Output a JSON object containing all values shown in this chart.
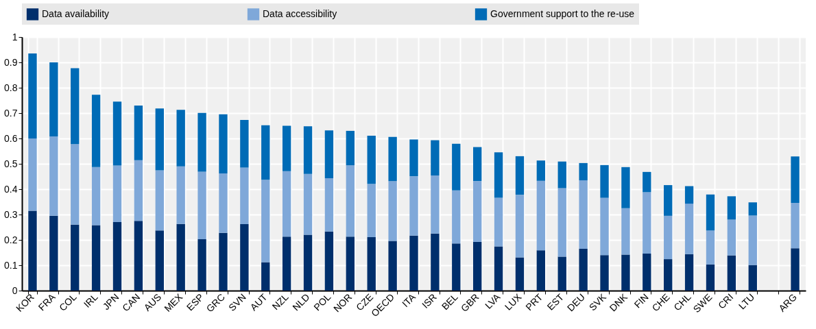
{
  "chart_data": {
    "type": "bar",
    "stacked": true,
    "categories": [
      "KOR",
      "FRA",
      "COL",
      "IRL",
      "JPN",
      "CAN",
      "AUS",
      "MEX",
      "ESP",
      "GRC",
      "SVN",
      "AUT",
      "NZL",
      "NLD",
      "POL",
      "NOR",
      "CZE",
      "OECD",
      "ITA",
      "ISR",
      "BEL",
      "GBR",
      "LVA",
      "LUX",
      "PRT",
      "EST",
      "DEU",
      "SVK",
      "DNK",
      "FIN",
      "CHE",
      "CHL",
      "SWE",
      "CRI",
      "LTU",
      null,
      "ARG"
    ],
    "series": [
      {
        "name": "Data availability",
        "color": "#002f6c",
        "values": [
          0.315,
          0.295,
          0.26,
          0.258,
          0.27,
          0.275,
          0.237,
          0.263,
          0.203,
          0.228,
          0.262,
          0.112,
          0.213,
          0.22,
          0.233,
          0.213,
          0.211,
          0.196,
          0.217,
          0.225,
          0.186,
          0.192,
          0.174,
          0.131,
          0.159,
          0.134,
          0.165,
          0.14,
          0.142,
          0.146,
          0.124,
          0.144,
          0.103,
          0.139,
          0.101,
          null,
          0.167
        ]
      },
      {
        "name": "Data accessibility",
        "color": "#7fa8d9",
        "values": [
          0.285,
          0.313,
          0.318,
          0.229,
          0.223,
          0.239,
          0.237,
          0.227,
          0.266,
          0.234,
          0.223,
          0.325,
          0.258,
          0.24,
          0.21,
          0.281,
          0.21,
          0.236,
          0.234,
          0.229,
          0.209,
          0.24,
          0.192,
          0.247,
          0.274,
          0.27,
          0.27,
          0.226,
          0.183,
          0.242,
          0.171,
          0.199,
          0.134,
          0.141,
          0.195,
          null,
          0.179
        ]
      },
      {
        "name": "Government support to the re-use",
        "color": "#006bb6",
        "values": [
          0.335,
          0.292,
          0.299,
          0.285,
          0.252,
          0.216,
          0.244,
          0.223,
          0.232,
          0.233,
          0.188,
          0.215,
          0.179,
          0.188,
          0.189,
          0.136,
          0.19,
          0.174,
          0.145,
          0.139,
          0.184,
          0.134,
          0.179,
          0.152,
          0.08,
          0.105,
          0.068,
          0.129,
          0.162,
          0.08,
          0.121,
          0.069,
          0.142,
          0.092,
          0.052,
          null,
          0.183
        ]
      }
    ],
    "ylim": [
      0,
      1
    ],
    "yticks": [
      0,
      0.1,
      0.2,
      0.3,
      0.4,
      0.5,
      0.6,
      0.7,
      0.8,
      0.9,
      1
    ],
    "grid": true,
    "legend": "top"
  }
}
